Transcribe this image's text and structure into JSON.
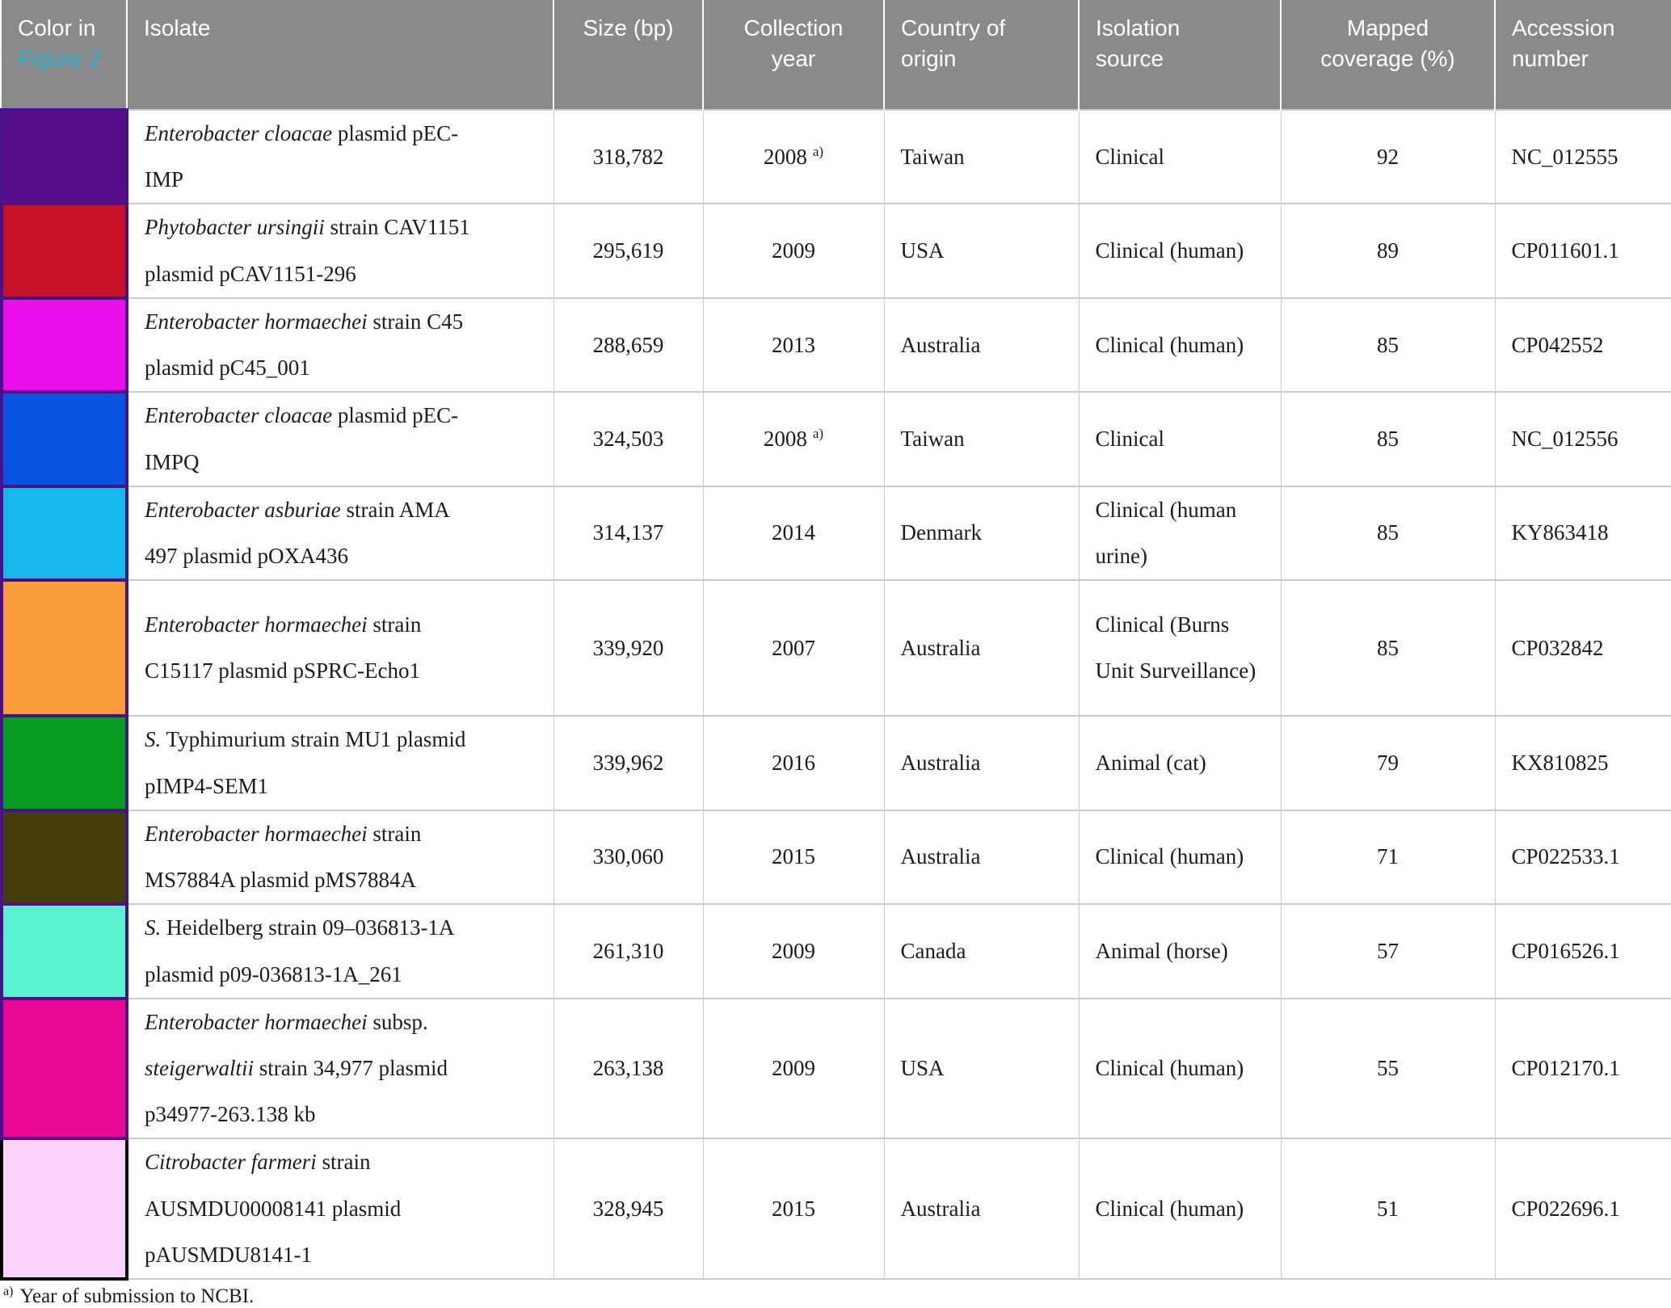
{
  "header": {
    "color_col": {
      "prefix": "Color in",
      "link": "Figure 2"
    },
    "columns": [
      "Isolate",
      "Size (bp)",
      "Collection year",
      "Country of origin",
      "Isolation source",
      "Mapped coverage (%)",
      "Accession number"
    ]
  },
  "rows": [
    {
      "swatch_color": "#560E8B",
      "swatch_border": "#47128A",
      "isolate": [
        {
          "t": "Enterobacter cloacae",
          "i": true
        },
        {
          "t": " plasmid pEC-\nIMP",
          "i": false
        }
      ],
      "size_bp": "318,782",
      "year": "2008",
      "year_note": "a)",
      "country": "Taiwan",
      "source": "Clinical",
      "coverage_pct": "92",
      "accession": "NC_012555"
    },
    {
      "swatch_color": "#C81126",
      "swatch_border": "#47128A",
      "isolate": [
        {
          "t": "Phytobacter ursingii",
          "i": true
        },
        {
          "t": " strain CAV1151\nplasmid pCAV1151-296",
          "i": false
        }
      ],
      "size_bp": "295,619",
      "year": "2009",
      "year_note": "",
      "country": "USA",
      "source": "Clinical (human)",
      "coverage_pct": "89",
      "accession": "CP011601.1"
    },
    {
      "swatch_color": "#E90EE9",
      "swatch_border": "#47128A",
      "isolate": [
        {
          "t": "Enterobacter hormaechei",
          "i": true
        },
        {
          "t": " strain C45\nplasmid pC45_001",
          "i": false
        }
      ],
      "size_bp": "288,659",
      "year": "2013",
      "year_note": "",
      "country": "Australia",
      "source": "Clinical (human)",
      "coverage_pct": "85",
      "accession": "CP042552"
    },
    {
      "swatch_color": "#0755DF",
      "swatch_border": "#47128A",
      "isolate": [
        {
          "t": "Enterobacter cloacae",
          "i": true
        },
        {
          "t": " plasmid pEC-\nIMPQ",
          "i": false
        }
      ],
      "size_bp": "324,503",
      "year": "2008",
      "year_note": "a)",
      "country": "Taiwan",
      "source": "Clinical",
      "coverage_pct": "85",
      "accession": "NC_012556"
    },
    {
      "swatch_color": "#15B9EB",
      "swatch_border": "#47128A",
      "isolate": [
        {
          "t": "Enterobacter asburiae",
          "i": true
        },
        {
          "t": " strain AMA\n497 plasmid pOXA436",
          "i": false
        }
      ],
      "size_bp": "314,137",
      "year": "2014",
      "year_note": "",
      "country": "Denmark",
      "source": "Clinical (human urine)",
      "coverage_pct": "85",
      "accession": "KY863418"
    },
    {
      "swatch_color": "#F99B38",
      "swatch_border": "#47128A",
      "isolate": [
        {
          "t": "Enterobacter hormaechei",
          "i": true
        },
        {
          "t": " strain\nC15117 plasmid pSPRC-Echo1",
          "i": false
        }
      ],
      "size_bp": "339,920",
      "year": "2007",
      "year_note": "",
      "country": "Australia",
      "source": "Clinical (Burns Unit Surveillance)",
      "coverage_pct": "85",
      "accession": "CP032842"
    },
    {
      "swatch_color": "#089E25",
      "swatch_border": "#47128A",
      "isolate": [
        {
          "t": "S.",
          "i": true
        },
        {
          "t": " Typhimurium strain MU1 plasmid\npIMP4-SEM1",
          "i": false
        }
      ],
      "size_bp": "339,962",
      "year": "2016",
      "year_note": "",
      "country": "Australia",
      "source": "Animal (cat)",
      "coverage_pct": "79",
      "accession": "KX810825"
    },
    {
      "swatch_color": "#443C0B",
      "swatch_border": "#47128A",
      "isolate": [
        {
          "t": "Enterobacter hormaechei",
          "i": true
        },
        {
          "t": " strain\nMS7884A plasmid pMS7884A",
          "i": false
        }
      ],
      "size_bp": "330,060",
      "year": "2015",
      "year_note": "",
      "country": "Australia",
      "source": "Clinical (human)",
      "coverage_pct": "71",
      "accession": "CP022533.1"
    },
    {
      "swatch_color": "#59F3D2",
      "swatch_border": "#47128A",
      "isolate": [
        {
          "t": "S.",
          "i": true
        },
        {
          "t": " Heidelberg strain 09–036813-1A\nplasmid p09-036813-1A_261",
          "i": false
        }
      ],
      "size_bp": "261,310",
      "year": "2009",
      "year_note": "",
      "country": "Canada",
      "source": "Animal (horse)",
      "coverage_pct": "57",
      "accession": "CP016526.1"
    },
    {
      "swatch_color": "#E90793",
      "swatch_border": "#47128A",
      "isolate": [
        {
          "t": "Enterobacter hormaechei",
          "i": true
        },
        {
          "t": " subsp.\n",
          "i": false
        },
        {
          "t": "steigerwaltii",
          "i": true
        },
        {
          "t": " strain 34,977 plasmid\np34977-263.138 kb",
          "i": false
        }
      ],
      "size_bp": "263,138",
      "year": "2009",
      "year_note": "",
      "country": "USA",
      "source": "Clinical (human)",
      "coverage_pct": "55",
      "accession": "CP012170.1"
    },
    {
      "swatch_color": "#FBD3FA",
      "swatch_border": "#000000",
      "isolate": [
        {
          "t": "Citrobacter farmeri",
          "i": true
        },
        {
          "t": " strain\nAUSMDU00008141 plasmid\npAUSMDU8141-1",
          "i": false
        }
      ],
      "size_bp": "328,945",
      "year": "2015",
      "year_note": "",
      "country": "Australia",
      "source": "Clinical (human)",
      "coverage_pct": "51",
      "accession": "CP022696.1"
    }
  ],
  "footnote": {
    "marker": "a)",
    "text": "Year of submission to NCBI."
  },
  "colors": {
    "header_bg": "#8A8A8A",
    "header_text": "#FFFFFF",
    "figure_link": "#27AFC9",
    "grid_line": "#CBCBCB",
    "swatch_border_default": "#47128A",
    "swatch_border_last": "#000000"
  }
}
